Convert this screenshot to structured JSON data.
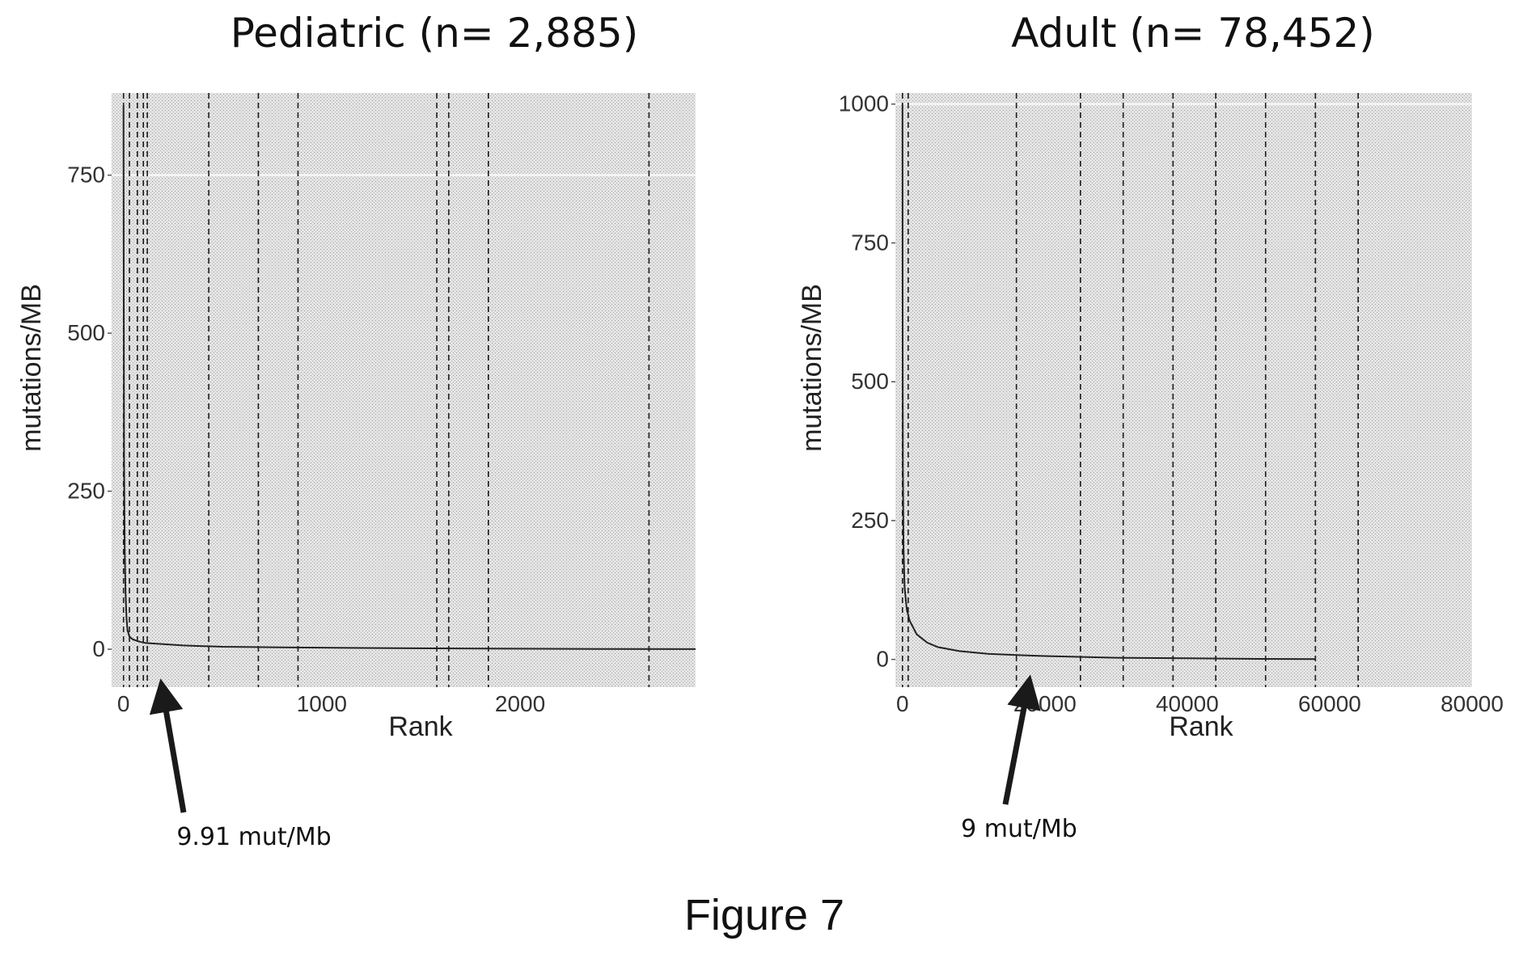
{
  "figure_caption": "Figure 7",
  "colors": {
    "panel_bg": "#e2e2e2",
    "curve": "#222222",
    "vline": "#1a1a1a",
    "arrow": "#1a1a1a"
  },
  "chart_data": [
    {
      "type": "line",
      "title": "Pediatric (n= 2,885)",
      "xlabel": "Rank",
      "ylabel": "mutations/MB",
      "xlim": [
        -60,
        2885
      ],
      "ylim": [
        -60,
        880
      ],
      "x_ticks": [
        0,
        1000,
        2000
      ],
      "x_tick_labels": [
        "0",
        "1000",
        "2000"
      ],
      "y_ticks": [
        0,
        250,
        500,
        750
      ],
      "y_tick_labels": [
        "0",
        "250",
        "500",
        "750"
      ],
      "grid": false,
      "legend": "none",
      "series": [
        {
          "x": [
            0,
            1,
            3,
            6,
            10,
            15,
            20,
            30,
            45,
            60,
            80,
            110,
            150,
            200,
            300,
            500,
            800,
            1200,
            1800,
            2400,
            2885
          ],
          "y": [
            860,
            560,
            300,
            160,
            90,
            50,
            30,
            20,
            16,
            14,
            12,
            10,
            9,
            8,
            6,
            4,
            3,
            2,
            1,
            0.5,
            0.2
          ]
        }
      ],
      "vlines": [
        0,
        30,
        70,
        100,
        120,
        430,
        680,
        880,
        1580,
        1640,
        1840,
        2650
      ],
      "annotation": {
        "text": "9.91 mut/Mb",
        "x": 120,
        "y": 9.91
      }
    },
    {
      "type": "line",
      "title": "Adult (n= 78,452)",
      "xlabel": "Rank",
      "ylabel": "mutations/MB",
      "xlim": [
        -1000,
        80000
      ],
      "ylim": [
        -50,
        1020
      ],
      "x_ticks": [
        0,
        20000,
        40000,
        60000,
        80000
      ],
      "x_tick_labels": [
        "0",
        "20000",
        "40000",
        "60000",
        "80000"
      ],
      "y_ticks": [
        0,
        250,
        500,
        750,
        1000
      ],
      "y_tick_labels": [
        "0",
        "250",
        "500",
        "750",
        "1000"
      ],
      "grid": false,
      "legend": "none",
      "series": [
        {
          "x": [
            0,
            20,
            60,
            150,
            300,
            600,
            1000,
            2000,
            3500,
            5000,
            8000,
            12000,
            16000,
            20000,
            30000,
            40000,
            50000,
            58000
          ],
          "y": [
            1000,
            600,
            350,
            200,
            130,
            90,
            70,
            45,
            30,
            22,
            15,
            10,
            8,
            6,
            3,
            2,
            1,
            0.5
          ]
        }
      ],
      "vlines": [
        0,
        800,
        16000,
        25000,
        31000,
        38000,
        44000,
        51000,
        58000,
        64000
      ],
      "annotation": {
        "text": "9 mut/Mb",
        "x": 16000,
        "y": 9
      }
    }
  ]
}
